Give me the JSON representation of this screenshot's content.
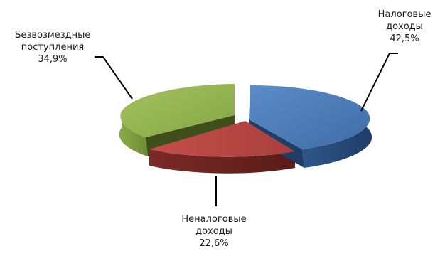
{
  "chart_data": {
    "type": "pie",
    "title": "",
    "slices": [
      {
        "key": "tax",
        "label_lines": [
          "Налоговые",
          "доходы"
        ],
        "value_label": "42,5%",
        "value": 42.5,
        "color": "#4a7ab5",
        "side_color": "#284a75"
      },
      {
        "key": "nontax",
        "label_lines": [
          "Неналоговые",
          "доходы"
        ],
        "value_label": "22,6%",
        "value": 22.6,
        "color": "#b84642",
        "side_color": "#6e2220"
      },
      {
        "key": "grants",
        "label_lines": [
          "Безвозмездные",
          "поступления"
        ],
        "value_label": "34,9%",
        "value": 34.9,
        "color": "#96b651",
        "side_color": "#5f7a2c"
      }
    ],
    "legend": "none",
    "style": "3d-exploded"
  }
}
